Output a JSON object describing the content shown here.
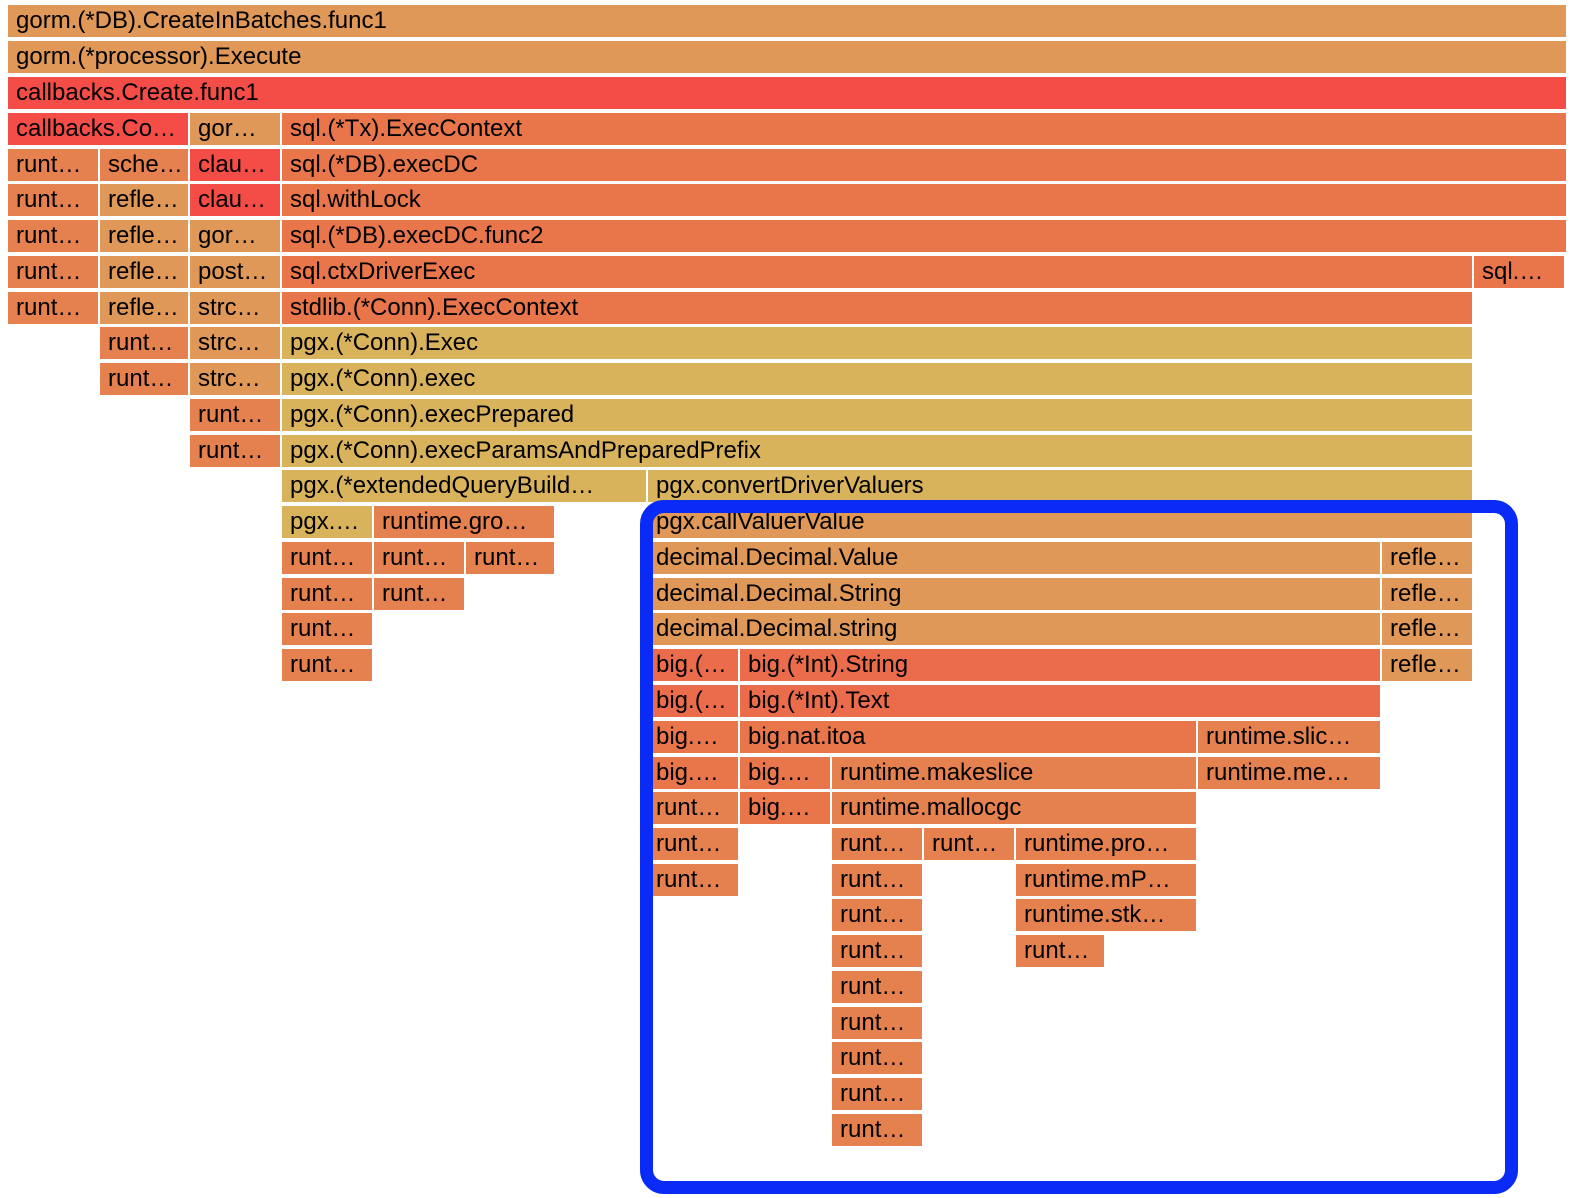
{
  "palette": {
    "gold": "#d9b35c",
    "tan": "#df9858",
    "orange": "#e5804f",
    "deep_orange": "#e9754b",
    "salmon": "#ea6c4b",
    "red": "#f44d48",
    "highlight": "#0a2bf5"
  },
  "frames": [
    {
      "name": "frame-gorm-createinbatches",
      "label": "gorm.(*DB).CreateInBatches.func1",
      "color": "tan"
    },
    {
      "name": "frame-gorm-processor-execute",
      "label": "gorm.(*processor).Execute",
      "color": "tan"
    },
    {
      "name": "frame-callbacks-create",
      "label": "callbacks.Create.func1",
      "color": "red"
    },
    {
      "name": "frame-callbacks-co",
      "label": "callbacks.Co…",
      "color": "red"
    },
    {
      "name": "frame-gor-1",
      "label": "gor…",
      "color": "tan"
    },
    {
      "name": "frame-sql-tx-execcontext",
      "label": "sql.(*Tx).ExecContext",
      "color": "deep_orange"
    },
    {
      "name": "frame-runt-r4",
      "label": "runt…",
      "color": "orange"
    },
    {
      "name": "frame-sche",
      "label": "sche…",
      "color": "orange"
    },
    {
      "name": "frame-clau-r4",
      "label": "clau…",
      "color": "red"
    },
    {
      "name": "frame-sql-db-execdc",
      "label": "sql.(*DB).execDC",
      "color": "deep_orange"
    },
    {
      "name": "frame-runt-r5",
      "label": "runt…",
      "color": "orange"
    },
    {
      "name": "frame-refle-r5",
      "label": "refle…",
      "color": "tan"
    },
    {
      "name": "frame-clau-r5",
      "label": "clau…",
      "color": "red"
    },
    {
      "name": "frame-sql-withlock",
      "label": "sql.withLock",
      "color": "deep_orange"
    },
    {
      "name": "frame-runt-r6",
      "label": "runt…",
      "color": "orange"
    },
    {
      "name": "frame-refle-r6",
      "label": "refle…",
      "color": "tan"
    },
    {
      "name": "frame-gor-2",
      "label": "gor…",
      "color": "tan"
    },
    {
      "name": "frame-sql-db-execdc-func2",
      "label": "sql.(*DB).execDC.func2",
      "color": "deep_orange"
    },
    {
      "name": "frame-runt-r7",
      "label": "runt…",
      "color": "orange"
    },
    {
      "name": "frame-refle-r7",
      "label": "refle…",
      "color": "tan"
    },
    {
      "name": "frame-post",
      "label": "post…",
      "color": "tan"
    },
    {
      "name": "frame-sql-ctxdriverexec",
      "label": "sql.ctxDriverExec",
      "color": "deep_orange"
    },
    {
      "name": "frame-sql-small",
      "label": "sql.…",
      "color": "deep_orange"
    },
    {
      "name": "frame-runt-r8",
      "label": "runt…",
      "color": "orange"
    },
    {
      "name": "frame-refle-r8",
      "label": "refle…",
      "color": "tan"
    },
    {
      "name": "frame-strc-r8",
      "label": "strc…",
      "color": "tan"
    },
    {
      "name": "frame-stdlib-conn-execcontext",
      "label": "stdlib.(*Conn).ExecContext",
      "color": "deep_orange"
    },
    {
      "name": "frame-runt-r9",
      "label": "runt…",
      "color": "orange"
    },
    {
      "name": "frame-strc-r9",
      "label": "strc…",
      "color": "tan"
    },
    {
      "name": "frame-pgx-conn-exec",
      "label": "pgx.(*Conn).Exec",
      "color": "gold"
    },
    {
      "name": "frame-runt-r10",
      "label": "runt…",
      "color": "orange"
    },
    {
      "name": "frame-strc-r10",
      "label": "strc…",
      "color": "tan"
    },
    {
      "name": "frame-pgx-conn-exec-lower",
      "label": "pgx.(*Conn).exec",
      "color": "gold"
    },
    {
      "name": "frame-runt-r11",
      "label": "runt…",
      "color": "orange"
    },
    {
      "name": "frame-pgx-conn-execprepared",
      "label": "pgx.(*Conn).execPrepared",
      "color": "gold"
    },
    {
      "name": "frame-runt-r12",
      "label": "runt…",
      "color": "orange"
    },
    {
      "name": "frame-pgx-execparams",
      "label": "pgx.(*Conn).execParamsAndPreparedPrefix",
      "color": "gold"
    },
    {
      "name": "frame-pgx-extendedquerybuild",
      "label": "pgx.(*extendedQueryBuild…",
      "color": "gold"
    },
    {
      "name": "frame-pgx-convertdrivervaluers",
      "label": "pgx.convertDriverValuers",
      "color": "gold"
    },
    {
      "name": "frame-pgx-small",
      "label": "pgx.…",
      "color": "gold"
    },
    {
      "name": "frame-runtime-gro",
      "label": "runtime.gro…",
      "color": "orange"
    },
    {
      "name": "frame-pgx-callvaluervalue",
      "label": "pgx.callValuerValue",
      "color": "tan"
    },
    {
      "name": "frame-runt-r15a",
      "label": "runt…",
      "color": "orange"
    },
    {
      "name": "frame-runt-r15b",
      "label": "runt…",
      "color": "orange"
    },
    {
      "name": "frame-runt-r15c",
      "label": "runt…",
      "color": "orange"
    },
    {
      "name": "frame-decimal-value",
      "label": "decimal.Decimal.Value",
      "color": "tan"
    },
    {
      "name": "frame-refle-r15",
      "label": "refle…",
      "color": "tan"
    },
    {
      "name": "frame-runt-r16a",
      "label": "runt…",
      "color": "orange"
    },
    {
      "name": "frame-runt-r16b",
      "label": "runt…",
      "color": "orange"
    },
    {
      "name": "frame-decimal-string",
      "label": "decimal.Decimal.String",
      "color": "tan"
    },
    {
      "name": "frame-refle-r16",
      "label": "refle…",
      "color": "tan"
    },
    {
      "name": "frame-runt-r17",
      "label": "runt…",
      "color": "orange"
    },
    {
      "name": "frame-decimal-string-lower",
      "label": "decimal.Decimal.string",
      "color": "tan"
    },
    {
      "name": "frame-refle-r17",
      "label": "refle…",
      "color": "tan"
    },
    {
      "name": "frame-runt-r18",
      "label": "runt…",
      "color": "orange"
    },
    {
      "name": "frame-big-paren-1",
      "label": "big.(…",
      "color": "salmon"
    },
    {
      "name": "frame-big-int-string",
      "label": "big.(*Int).String",
      "color": "salmon"
    },
    {
      "name": "frame-refle-r18",
      "label": "refle…",
      "color": "tan"
    },
    {
      "name": "frame-big-paren-2",
      "label": "big.(…",
      "color": "salmon"
    },
    {
      "name": "frame-big-int-text",
      "label": "big.(*Int).Text",
      "color": "salmon"
    },
    {
      "name": "frame-big-dot-1",
      "label": "big.…",
      "color": "deep_orange"
    },
    {
      "name": "frame-big-nat-itoa",
      "label": "big.nat.itoa",
      "color": "deep_orange"
    },
    {
      "name": "frame-runtime-slic",
      "label": "runtime.slic…",
      "color": "orange"
    },
    {
      "name": "frame-big-dot-2",
      "label": "big.…",
      "color": "deep_orange"
    },
    {
      "name": "frame-big-dot-3",
      "label": "big.…",
      "color": "deep_orange"
    },
    {
      "name": "frame-runtime-makeslice",
      "label": "runtime.makeslice",
      "color": "orange"
    },
    {
      "name": "frame-runtime-me",
      "label": "runtime.me…",
      "color": "orange"
    },
    {
      "name": "frame-runt-r23",
      "label": "runt…",
      "color": "orange"
    },
    {
      "name": "frame-big-dot-4",
      "label": "big.…",
      "color": "deep_orange"
    },
    {
      "name": "frame-runtime-mallocgc",
      "label": "runtime.mallocgc",
      "color": "orange"
    },
    {
      "name": "frame-runt-r24a",
      "label": "runt…",
      "color": "orange"
    },
    {
      "name": "frame-runt-r24b",
      "label": "runt…",
      "color": "orange"
    },
    {
      "name": "frame-runt-r24c",
      "label": "runt…",
      "color": "orange"
    },
    {
      "name": "frame-runtime-pro",
      "label": "runtime.pro…",
      "color": "orange"
    },
    {
      "name": "frame-runt-r25a",
      "label": "runt…",
      "color": "orange"
    },
    {
      "name": "frame-runt-r25b",
      "label": "runt…",
      "color": "orange"
    },
    {
      "name": "frame-runtime-mp",
      "label": "runtime.mP…",
      "color": "orange"
    },
    {
      "name": "frame-runt-r26",
      "label": "runt…",
      "color": "orange"
    },
    {
      "name": "frame-runtime-stk",
      "label": "runtime.stk…",
      "color": "orange"
    },
    {
      "name": "frame-runt-r27a",
      "label": "runt…",
      "color": "orange"
    },
    {
      "name": "frame-runt-r27b",
      "label": "runt…",
      "color": "orange"
    },
    {
      "name": "frame-runt-r28",
      "label": "runt…",
      "color": "orange"
    },
    {
      "name": "frame-runt-r29",
      "label": "runt…",
      "color": "orange"
    },
    {
      "name": "frame-runt-r30",
      "label": "runt…",
      "color": "orange"
    },
    {
      "name": "frame-runt-r31",
      "label": "runt…",
      "color": "orange"
    },
    {
      "name": "frame-runt-r32",
      "label": "runt…",
      "color": "orange"
    }
  ]
}
